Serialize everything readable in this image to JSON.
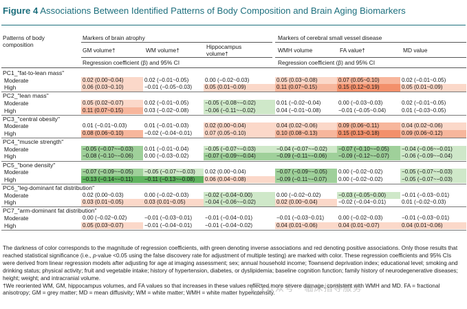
{
  "title": {
    "label": "Figure 4",
    "text": "Associations Between Identified Patterns of Body Composition and Brain Aging Biomarkers"
  },
  "header": {
    "stub": [
      "Patterns of body",
      "composition"
    ],
    "group_atrophy": "Markers of brain atrophy",
    "group_svd": "Markers of cerebral small vessel disease",
    "cols": [
      "GM volume†",
      "WM volume†",
      "Hippocampus volume†",
      "WMH volume",
      "FA value†",
      "MD value"
    ],
    "reg_label": "Regression coefficient (β) and 95% CI"
  },
  "colors": {
    "red_strong": "#f3906b",
    "red_mid": "#f7b69c",
    "red_light": "#fbd8c9",
    "green_strong": "#5fb35f",
    "green_mid": "#9fd09a",
    "green_light": "#cfe8c9",
    "accent": "#1d6f7d"
  },
  "sections": [
    {
      "title": "PC1_\"fat-to-lean mass\"",
      "rows": [
        {
          "label": "Moderate",
          "cells": [
            {
              "text": "0.02 (0.00~0.04)",
              "shade": "red_light"
            },
            {
              "text": "0.02 (−0.01~0.05)",
              "shade": ""
            },
            {
              "text": "0.00 (−0.02~0.03)",
              "shade": ""
            },
            {
              "text": "0.05 (0.03~0.08)",
              "shade": "red_light"
            },
            {
              "text": "0.07 (0.05~0.10)",
              "shade": "red_mid"
            },
            {
              "text": "0.02 (−0.01~0.05)",
              "shade": ""
            }
          ]
        },
        {
          "label": "High",
          "cells": [
            {
              "text": "0.06 (0.03~0.10)",
              "shade": "red_light"
            },
            {
              "text": "−0.01 (−0.05~0.03)",
              "shade": ""
            },
            {
              "text": "0.05 (0.01~0.09)",
              "shade": "red_light"
            },
            {
              "text": "0.11 (0.07~0.15)",
              "shade": "red_mid"
            },
            {
              "text": "0.15 (0.12~0.19)",
              "shade": "red_strong"
            },
            {
              "text": "0.05 (0.01~0.09)",
              "shade": "red_light"
            }
          ]
        }
      ]
    },
    {
      "title": "PC2_\"lean mass\"",
      "rows": [
        {
          "label": "Moderate",
          "cells": [
            {
              "text": "0.05 (0.02~0.07)",
              "shade": "red_light"
            },
            {
              "text": "0.02 (−0.01~0.05)",
              "shade": ""
            },
            {
              "text": "−0.05 (−0.08~−0.02)",
              "shade": "green_light"
            },
            {
              "text": "0.01 (−0.02~0.04)",
              "shade": ""
            },
            {
              "text": "0.00 (−0.03~0.03)",
              "shade": ""
            },
            {
              "text": "0.02 (−0.01~0.05)",
              "shade": ""
            }
          ]
        },
        {
          "label": "High",
          "cells": [
            {
              "text": "0.11 (0.07~0.15)",
              "shade": "red_mid"
            },
            {
              "text": "0.03 (−0.02~0.08)",
              "shade": ""
            },
            {
              "text": "−0.06 (−0.11~−0.02)",
              "shade": "green_light"
            },
            {
              "text": "0.04 (−0.01~0.08)",
              "shade": ""
            },
            {
              "text": "−0.01 (−0.05~0.04)",
              "shade": ""
            },
            {
              "text": "0.01 (−0.03~0.05)",
              "shade": ""
            }
          ]
        }
      ]
    },
    {
      "title": "PC3_\"central obesity\"",
      "rows": [
        {
          "label": "Moderate",
          "cells": [
            {
              "text": "0.01 (−0.01~0.03)",
              "shade": ""
            },
            {
              "text": "0.01 (−0.01~0.03)",
              "shade": ""
            },
            {
              "text": "0.02 (0.00~0.04)",
              "shade": "red_light"
            },
            {
              "text": "0.04 (0.02~0.06)",
              "shade": "red_light"
            },
            {
              "text": "0.09 (0.06~0.11)",
              "shade": "red_mid"
            },
            {
              "text": "0.04 (0.02~0.06)",
              "shade": "red_light"
            }
          ]
        },
        {
          "label": "High",
          "cells": [
            {
              "text": "0.08 (0.06~0.10)",
              "shade": "red_mid"
            },
            {
              "text": "−0.02 (−0.04~0.01)",
              "shade": ""
            },
            {
              "text": "0.07 (0.05~0.10)",
              "shade": "red_light"
            },
            {
              "text": "0.10 (0.08~0.13)",
              "shade": "red_mid"
            },
            {
              "text": "0.15 (0.13~0.18)",
              "shade": "red_strong"
            },
            {
              "text": "0.09 (0.06~0.12)",
              "shade": "red_mid"
            }
          ]
        }
      ]
    },
    {
      "title": "PC4_\"muscle strength\"",
      "rows": [
        {
          "label": "Moderate",
          "cells": [
            {
              "text": "−0.05 (−0.07~−0.03)",
              "shade": "green_mid"
            },
            {
              "text": "0.01 (−0.01~0.04)",
              "shade": ""
            },
            {
              "text": "−0.05 (−0.07~−0.03)",
              "shade": "green_light"
            },
            {
              "text": "−0.04 (−0.07~−0.02)",
              "shade": "green_light"
            },
            {
              "text": "−0.07 (−0.10~−0.05)",
              "shade": "green_mid"
            },
            {
              "text": "−0.04 (−0.06~−0.01)",
              "shade": "green_light"
            }
          ]
        },
        {
          "label": "High",
          "cells": [
            {
              "text": "−0.08 (−0.10~−0.06)",
              "shade": "green_mid"
            },
            {
              "text": "0.00 (−0.03~0.02)",
              "shade": ""
            },
            {
              "text": "−0.07 (−0.09~−0.04)",
              "shade": "green_mid"
            },
            {
              "text": "−0.09 (−0.11~−0.06)",
              "shade": "green_mid"
            },
            {
              "text": "−0.09 (−0.12~−0.07)",
              "shade": "green_mid"
            },
            {
              "text": "−0.06 (−0.09~−0.04)",
              "shade": "green_light"
            }
          ]
        }
      ]
    },
    {
      "title": "PC5_\"bone density\"",
      "rows": [
        {
          "label": "Moderate",
          "cells": [
            {
              "text": "−0.07 (−0.09~−0.05)",
              "shade": "green_mid"
            },
            {
              "text": "−0.05 (−0.07~−0.03)",
              "shade": "green_light"
            },
            {
              "text": "0.02 (0.00~0.04)",
              "shade": ""
            },
            {
              "text": "−0.07 (−0.09~−0.05)",
              "shade": "green_mid"
            },
            {
              "text": "0.00 (−0.02~0.02)",
              "shade": ""
            },
            {
              "text": "−0.05 (−0.07~−0.03)",
              "shade": "green_light"
            }
          ]
        },
        {
          "label": "High",
          "cells": [
            {
              "text": "−0.13 (−0.14~−0.11)",
              "shade": "green_strong"
            },
            {
              "text": "−0.11 (−0.13~−0.08)",
              "shade": "green_strong"
            },
            {
              "text": "0.06 (0.04~0.08)",
              "shade": "red_light"
            },
            {
              "text": "−0.09 (−0.11~−0.07)",
              "shade": "green_mid"
            },
            {
              "text": "0.00 (−0.02~0.02)",
              "shade": ""
            },
            {
              "text": "−0.05 (−0.07~−0.03)",
              "shade": "green_light"
            }
          ]
        }
      ]
    },
    {
      "title": "PC6_\"leg-dominant fat distribution\"",
      "rows": [
        {
          "label": "Moderate",
          "cells": [
            {
              "text": "0.02 (0.00~0.03)",
              "shade": ""
            },
            {
              "text": "0.00 (−0.02~0.03)",
              "shade": ""
            },
            {
              "text": "−0.02 (−0.04~0.00)",
              "shade": "green_light"
            },
            {
              "text": "0.00 (−0.02~0.02)",
              "shade": ""
            },
            {
              "text": "−0.03 (−0.05~0.00)",
              "shade": "green_light"
            },
            {
              "text": "−0.01 (−0.03~0.01)",
              "shade": ""
            }
          ]
        },
        {
          "label": "High",
          "cells": [
            {
              "text": "0.03 (0.01~0.05)",
              "shade": "red_light"
            },
            {
              "text": "0.03 (0.01~0.05)",
              "shade": "red_light"
            },
            {
              "text": "−0.04 (−0.06~−0.02)",
              "shade": "green_light"
            },
            {
              "text": "0.02 (0.00~0.04)",
              "shade": "red_light"
            },
            {
              "text": "−0.02 (−0.04~0.01)",
              "shade": ""
            },
            {
              "text": "0.01 (−0.02~0.03)",
              "shade": ""
            }
          ]
        }
      ]
    },
    {
      "title": "PC7_\"arm-dominant fat distribution\"",
      "rows": [
        {
          "label": "Moderate",
          "cells": [
            {
              "text": "0.00 (−0.02~0.02)",
              "shade": ""
            },
            {
              "text": "−0.01 (−0.03~0.01)",
              "shade": ""
            },
            {
              "text": "−0.01 (−0.04~0.01)",
              "shade": ""
            },
            {
              "text": "−0.01 (−0.03~0.01)",
              "shade": ""
            },
            {
              "text": "0.00 (−0.02~0.03)",
              "shade": ""
            },
            {
              "text": "−0.01 (−0.03~0.01)",
              "shade": ""
            }
          ]
        },
        {
          "label": "High",
          "cells": [
            {
              "text": "0.05 (0.03~0.07)",
              "shade": "red_light"
            },
            {
              "text": "−0.01 (−0.04~0.01)",
              "shade": ""
            },
            {
              "text": "−0.01 (−0.04~0.02)",
              "shade": ""
            },
            {
              "text": "0.04 (0.01~0.06)",
              "shade": "red_light"
            },
            {
              "text": "0.04 (0.01~0.07)",
              "shade": "red_light"
            },
            {
              "text": "0.04 (0.01~0.06)",
              "shade": "red_light"
            }
          ]
        }
      ]
    }
  ],
  "footnote": {
    "p1": "The darkness of color corresponds to the magnitude of regression coefficients, with green denoting inverse associations and red denoting positive associations. Only those results that reached statistical significance (i.e., ",
    "p_italic": "p",
    "p2": "-value <0.05 using the false discovery rate for adjustment of multiple testing) are marked with color. These regression coefficients and 95% CIs were derived from linear regression models after adjusting for age at imaging assessment; sex; annual household income; Townsend deprivation index; educational level; smoking and drinking status; physical activity; fruit and vegetable intake; history of hypertension, diabetes, or dyslipidemia; baseline cognition function; family history of neurodegenerative diseases; height; weight; and intracranial volume.",
    "p3": "†We reoriented WM, GM, hippocampus volumes, and FA values so that increases in these values reflected more severe damage, consistent with WMH and MD. FA = fractional anisotropy; GM = grey matter; MD = mean diffusivity; WM = white matter; WMH = white matter hyperintensity."
  },
  "watermark": "公众号 · 临床指导服务"
}
